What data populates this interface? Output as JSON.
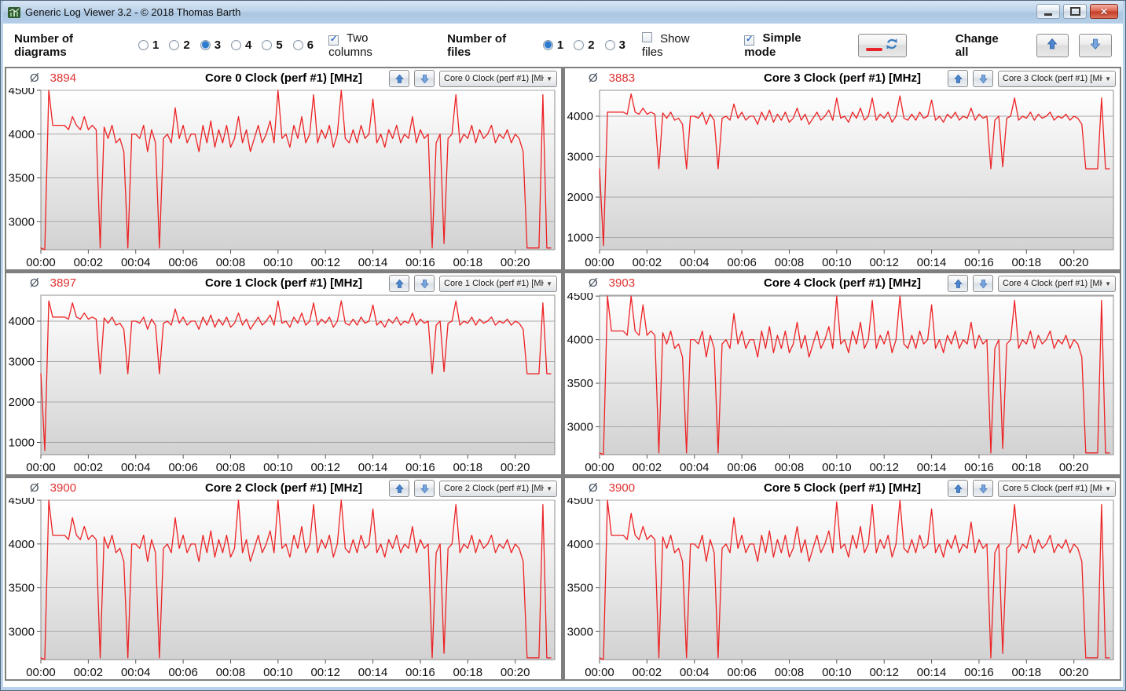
{
  "window": {
    "title": "Generic Log Viewer 3.2 - © 2018 Thomas Barth"
  },
  "toolbar": {
    "diagrams_label": "Number of diagrams",
    "diagram_options": [
      "1",
      "2",
      "3",
      "4",
      "5",
      "6"
    ],
    "diagrams_selected": "3",
    "two_columns_label": "Two columns",
    "two_columns_checked": true,
    "files_label": "Number of files",
    "file_options": [
      "1",
      "2",
      "3"
    ],
    "files_selected": "1",
    "show_files_label": "Show files",
    "show_files_checked": false,
    "simple_mode_label": "Simple mode",
    "simple_mode_checked": true,
    "change_all_label": "Change all"
  },
  "avg_symbol": "Ø",
  "colors": {
    "series_red": "#ed2224",
    "avg_red": "#e03131",
    "arrow_blue_dark": "#3c6fb4",
    "arrow_blue_light": "#6f9fd8",
    "grid_line": "#a9a9a9",
    "plot_border": "#8c8c8c"
  },
  "chart_common": {
    "x_step_seconds": 10,
    "x_max_seconds": 1300,
    "x_tick_interval_seconds": 120,
    "x_tick_labels": [
      "00:00",
      "00:02",
      "00:04",
      "00:06",
      "00:08",
      "00:10",
      "00:12",
      "00:14",
      "00:16",
      "00:18",
      "00:20"
    ]
  },
  "chart_data": [
    {
      "type": "line",
      "title": "Core 0 Clock (perf #1) [MHz]",
      "avg": "3894",
      "dropdown_label": "Core 0 Clock (perf #1) [MH",
      "ylim": [
        2680,
        4500
      ],
      "yticks": [
        3000,
        3500,
        4000,
        4500
      ],
      "values": [
        2700,
        800,
        4500,
        4100,
        4100,
        4100,
        4100,
        4050,
        4200,
        4100,
        4050,
        4200,
        4050,
        4100,
        4050,
        2700,
        4080,
        3950,
        4100,
        3900,
        3950,
        3800,
        2700,
        4000,
        4000,
        3950,
        4100,
        3800,
        4050,
        3900,
        2700,
        3950,
        4000,
        3900,
        4300,
        3950,
        4100,
        3900,
        4000,
        4000,
        3800,
        4100,
        3900,
        4150,
        3850,
        4050,
        3900,
        4100,
        3850,
        3950,
        4200,
        3900,
        4050,
        3800,
        3950,
        4100,
        3900,
        4000,
        4150,
        3900,
        4500,
        3950,
        4000,
        3850,
        4100,
        3950,
        4200,
        3900,
        4000,
        4450,
        3900,
        4050,
        3950,
        4100,
        3850,
        4000,
        4500,
        3950,
        3900,
        4050,
        3900,
        4100,
        3950,
        4000,
        4400,
        3900,
        4000,
        3850,
        4050,
        3950,
        4100,
        3900,
        4000,
        3950,
        4200,
        3900,
        4050,
        3950,
        4000,
        2700,
        3900,
        4000,
        2750,
        3950,
        4000,
        4450,
        3900,
        4000,
        3950,
        4100,
        3900,
        4050,
        3950,
        4000,
        4100,
        3900,
        4000,
        3950,
        4050,
        3900,
        4000,
        3950,
        3800,
        2700,
        2700,
        2700,
        2700,
        4450,
        2700,
        2700
      ]
    },
    {
      "type": "line",
      "title": "Core 3 Clock (perf #1) [MHz]",
      "avg": "3883",
      "dropdown_label": "Core 3 Clock (perf #1) [MH",
      "ylim": [
        700,
        4640
      ],
      "yticks": [
        1000,
        2000,
        3000,
        4000
      ],
      "values": [
        2700,
        800,
        4100,
        4100,
        4100,
        4100,
        4100,
        4050,
        4550,
        4100,
        4050,
        4200,
        4050,
        4100,
        4050,
        2700,
        4080,
        3950,
        4100,
        3900,
        3950,
        3800,
        2700,
        4000,
        4000,
        3950,
        4100,
        3800,
        4050,
        3900,
        2700,
        3950,
        4000,
        3900,
        4300,
        3950,
        4100,
        3900,
        4000,
        4000,
        3800,
        4100,
        3900,
        4150,
        3850,
        4050,
        3900,
        4100,
        3850,
        3950,
        4200,
        3900,
        4050,
        3800,
        3950,
        4100,
        3900,
        4000,
        4150,
        3900,
        4450,
        3950,
        4000,
        3850,
        4100,
        3950,
        4200,
        3900,
        4000,
        4450,
        3900,
        4050,
        3950,
        4100,
        3850,
        4000,
        4500,
        3950,
        3900,
        4050,
        3900,
        4100,
        3950,
        4000,
        4400,
        3900,
        4000,
        3850,
        4050,
        3950,
        4100,
        3900,
        4000,
        3950,
        4200,
        3900,
        4050,
        3950,
        4000,
        2700,
        3900,
        4000,
        2750,
        3950,
        4000,
        4450,
        3900,
        4000,
        3950,
        4100,
        3900,
        4050,
        3950,
        4000,
        4100,
        3900,
        4000,
        3950,
        4050,
        3900,
        4000,
        3950,
        3800,
        2700,
        2700,
        2700,
        2700,
        4450,
        2700,
        2700
      ]
    },
    {
      "type": "line",
      "title": "Core 1 Clock (perf #1) [MHz]",
      "avg": "3897",
      "dropdown_label": "Core 1 Clock (perf #1) [MH",
      "ylim": [
        700,
        4640
      ],
      "yticks": [
        1000,
        2000,
        3000,
        4000
      ],
      "values": [
        2700,
        800,
        4500,
        4100,
        4100,
        4100,
        4100,
        4050,
        4450,
        4100,
        4050,
        4200,
        4050,
        4100,
        4050,
        2700,
        4080,
        3950,
        4100,
        3900,
        3950,
        3800,
        2700,
        4000,
        4000,
        3950,
        4100,
        3800,
        4050,
        3900,
        2700,
        3950,
        4000,
        3900,
        4300,
        3950,
        4100,
        3900,
        4000,
        4000,
        3800,
        4100,
        3900,
        4150,
        3850,
        4050,
        3900,
        4100,
        3850,
        3950,
        4200,
        3900,
        4050,
        3800,
        3950,
        4100,
        3900,
        4000,
        4150,
        3900,
        4500,
        3950,
        4000,
        3850,
        4100,
        3950,
        4200,
        3900,
        4000,
        4450,
        3900,
        4050,
        3950,
        4100,
        3850,
        4000,
        4500,
        3950,
        3900,
        4050,
        3900,
        4100,
        3950,
        4000,
        4400,
        3900,
        4000,
        3850,
        4050,
        3950,
        4100,
        3900,
        4000,
        3950,
        4200,
        3900,
        4050,
        3950,
        4000,
        2700,
        3900,
        4000,
        2750,
        3950,
        4000,
        4500,
        3900,
        4000,
        3950,
        4100,
        3900,
        4050,
        3950,
        4000,
        4100,
        3900,
        4000,
        3950,
        4050,
        3900,
        4000,
        3950,
        3800,
        2700,
        2700,
        2700,
        2700,
        4450,
        2700,
        2700
      ]
    },
    {
      "type": "line",
      "title": "Core 4 Clock (perf #1) [MHz]",
      "avg": "3903",
      "dropdown_label": "Core 4 Clock (perf #1) [MH",
      "ylim": [
        2680,
        4510
      ],
      "yticks": [
        3000,
        3500,
        4000,
        4500
      ],
      "values": [
        2700,
        800,
        4500,
        4100,
        4100,
        4100,
        4100,
        4050,
        4500,
        4100,
        4050,
        4400,
        4050,
        4100,
        4050,
        2700,
        4080,
        3950,
        4100,
        3900,
        3950,
        3800,
        2700,
        4000,
        4000,
        3950,
        4100,
        3800,
        4050,
        3900,
        2700,
        3950,
        4000,
        3900,
        4300,
        3950,
        4100,
        3900,
        4000,
        4000,
        3800,
        4100,
        3900,
        4150,
        3850,
        4050,
        3900,
        4100,
        3850,
        3950,
        4200,
        3900,
        4050,
        3800,
        3950,
        4100,
        3900,
        4000,
        4150,
        3900,
        4500,
        3950,
        4000,
        3850,
        4100,
        3950,
        4200,
        3900,
        4000,
        4450,
        3900,
        4050,
        3950,
        4100,
        3850,
        4000,
        4500,
        3950,
        3900,
        4050,
        3900,
        4100,
        3950,
        4000,
        4400,
        3900,
        4000,
        3850,
        4050,
        3950,
        4100,
        3900,
        4000,
        3950,
        4200,
        3900,
        4050,
        3950,
        4000,
        2700,
        3900,
        4000,
        2750,
        3950,
        4000,
        4450,
        3900,
        4000,
        3950,
        4100,
        3900,
        4050,
        3950,
        4000,
        4100,
        3900,
        4000,
        3950,
        4050,
        3900,
        4000,
        3950,
        3800,
        2700,
        2700,
        2700,
        2700,
        4450,
        2700,
        2700
      ]
    },
    {
      "type": "line",
      "title": "Core 2 Clock (perf #1) [MHz]",
      "avg": "3900",
      "dropdown_label": "Core 2 Clock (perf #1) [MH",
      "ylim": [
        2680,
        4500
      ],
      "yticks": [
        3000,
        3500,
        4000,
        4500
      ],
      "values": [
        2700,
        800,
        4500,
        4100,
        4100,
        4100,
        4100,
        4050,
        4300,
        4100,
        4050,
        4200,
        4050,
        4100,
        4050,
        2700,
        4080,
        3950,
        4100,
        3900,
        3950,
        3800,
        2700,
        4000,
        4000,
        3950,
        4100,
        3800,
        4050,
        3900,
        2700,
        3950,
        4000,
        3900,
        4300,
        3950,
        4100,
        3900,
        4000,
        4000,
        3800,
        4100,
        3900,
        4150,
        3850,
        4050,
        3900,
        4100,
        3850,
        3950,
        4500,
        3900,
        4050,
        3800,
        3950,
        4100,
        3900,
        4000,
        4150,
        3900,
        4500,
        3950,
        4000,
        3850,
        4100,
        3950,
        4200,
        3900,
        4000,
        4450,
        3900,
        4050,
        3950,
        4100,
        3850,
        4000,
        4500,
        3950,
        3900,
        4050,
        3900,
        4100,
        3950,
        4000,
        4400,
        3900,
        4000,
        3850,
        4050,
        3950,
        4100,
        3900,
        4000,
        3950,
        4200,
        3900,
        4050,
        3950,
        4000,
        2700,
        3900,
        4000,
        2750,
        3950,
        4000,
        4450,
        3900,
        4000,
        3950,
        4100,
        3900,
        4050,
        3950,
        4000,
        4100,
        3900,
        4000,
        3950,
        4050,
        3900,
        4000,
        3950,
        3800,
        2700,
        2700,
        2700,
        2700,
        4450,
        2700,
        2700
      ]
    },
    {
      "type": "line",
      "title": "Core 5 Clock (perf #1) [MHz]",
      "avg": "3900",
      "dropdown_label": "Core 5 Clock (perf #1) [MH",
      "ylim": [
        2680,
        4500
      ],
      "yticks": [
        3000,
        3500,
        4000,
        4500
      ],
      "values": [
        2700,
        800,
        4500,
        4100,
        4100,
        4100,
        4100,
        4050,
        4350,
        4100,
        4050,
        4200,
        4050,
        4100,
        4050,
        2700,
        4080,
        3950,
        4100,
        3900,
        3950,
        3800,
        2700,
        4000,
        4000,
        3950,
        4100,
        3800,
        4050,
        3900,
        2700,
        3950,
        4000,
        3900,
        4300,
        3950,
        4100,
        3900,
        4000,
        4000,
        3800,
        4100,
        3900,
        4150,
        3850,
        4050,
        3900,
        4100,
        3850,
        3950,
        4200,
        3900,
        4050,
        3800,
        3950,
        4100,
        3900,
        4000,
        4150,
        3900,
        4480,
        3950,
        4000,
        3850,
        4100,
        3950,
        4200,
        3900,
        4000,
        4450,
        3900,
        4050,
        3950,
        4100,
        3850,
        4000,
        4500,
        3950,
        3900,
        4050,
        3900,
        4100,
        3950,
        4000,
        4400,
        3900,
        4000,
        3850,
        4050,
        3950,
        4100,
        3900,
        4000,
        3950,
        4250,
        3900,
        4050,
        3950,
        4000,
        2700,
        3900,
        4000,
        2750,
        3950,
        4000,
        4450,
        3900,
        4000,
        3950,
        4100,
        3900,
        4050,
        3950,
        4000,
        4100,
        3900,
        4000,
        3950,
        4050,
        3900,
        4000,
        3950,
        3800,
        2700,
        2700,
        2700,
        2700,
        4450,
        2700,
        2700
      ]
    }
  ]
}
